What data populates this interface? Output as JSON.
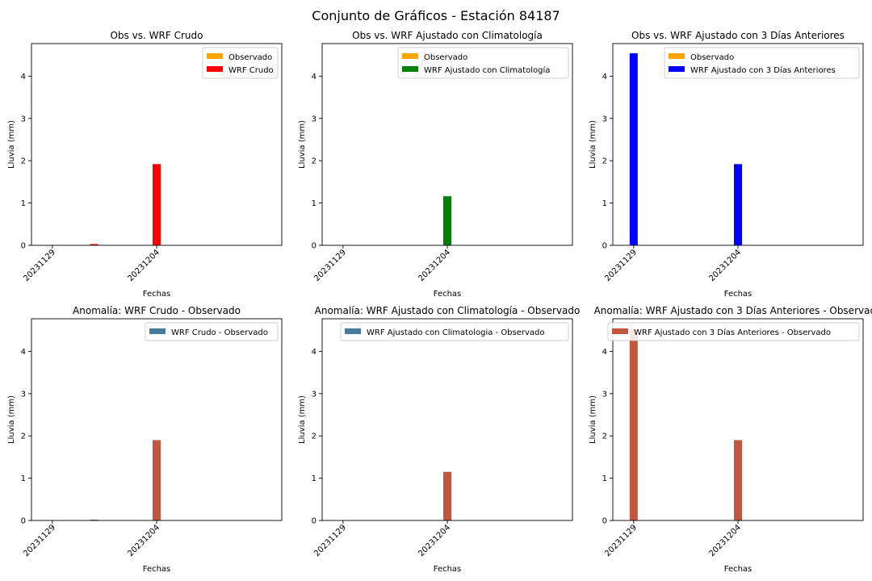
{
  "figure": {
    "title": "Conjunto de Gráficos - Estación 84187"
  },
  "chart_data": [
    {
      "type": "bar",
      "title": "Obs vs. WRF Crudo",
      "xlabel": "Fechas",
      "ylabel": "Lluvia (mm)",
      "ylim": [
        0,
        4.77
      ],
      "yticks": [
        0,
        1,
        2,
        3,
        4
      ],
      "x_ticks": [
        "20231129",
        "20231204"
      ],
      "xlim": [
        "20231128",
        "20231210"
      ],
      "legend": "top-right",
      "series": [
        {
          "name": "Observado",
          "color": "#ffa500",
          "points": []
        },
        {
          "name": "WRF Crudo",
          "color": "#ff0000",
          "points": [
            {
              "x": "20231201",
              "y": 0.03
            },
            {
              "x": "20231204",
              "y": 1.92
            }
          ]
        }
      ]
    },
    {
      "type": "bar",
      "title": "Obs vs. WRF Ajustado con Climatología",
      "xlabel": "Fechas",
      "ylabel": "Lluvia (mm)",
      "ylim": [
        0,
        4.77
      ],
      "yticks": [
        0,
        1,
        2,
        3,
        4
      ],
      "x_ticks": [
        "20231129",
        "20231204"
      ],
      "xlim": [
        "20231128",
        "20231210"
      ],
      "legend": "top-right",
      "series": [
        {
          "name": "Observado",
          "color": "#ffa500",
          "points": []
        },
        {
          "name": "WRF Ajustado con Climatología",
          "color": "#008000",
          "points": [
            {
              "x": "20231204",
              "y": 1.16
            }
          ]
        }
      ]
    },
    {
      "type": "bar",
      "title": "Obs vs. WRF Ajustado con 3 Días Anteriores",
      "xlabel": "Fechas",
      "ylabel": "Lluvia (mm)",
      "ylim": [
        0,
        4.77
      ],
      "yticks": [
        0,
        1,
        2,
        3,
        4
      ],
      "x_ticks": [
        "20231129",
        "20231204"
      ],
      "xlim": [
        "20231128",
        "20231210"
      ],
      "legend": "top-right",
      "series": [
        {
          "name": "Observado",
          "color": "#ffa500",
          "points": []
        },
        {
          "name": "WRF Ajustado con 3 Días Anteriores",
          "color": "#0000ff",
          "points": [
            {
              "x": "20231129",
              "y": 4.54
            },
            {
              "x": "20231204",
              "y": 1.92
            }
          ]
        }
      ]
    },
    {
      "type": "bar",
      "title": "Anomalía: WRF Crudo - Observado",
      "xlabel": "Fechas",
      "ylabel": "Lluvia (mm)",
      "ylim": [
        0,
        4.77
      ],
      "yticks": [
        0,
        1,
        2,
        3,
        4
      ],
      "x_ticks": [
        "20231129",
        "20231204"
      ],
      "xlim": [
        "20231128",
        "20231210"
      ],
      "legend": "top-right",
      "legend_color": "#457b9d",
      "series": [
        {
          "name": "WRF Crudo - Observado",
          "color": "#c1583d",
          "points": [
            {
              "x": "20231201",
              "y": 0.02
            },
            {
              "x": "20231204",
              "y": 1.9
            }
          ]
        }
      ]
    },
    {
      "type": "bar",
      "title": "Anomalía: WRF Ajustado con Climatología - Observado",
      "xlabel": "Fechas",
      "ylabel": "Lluvia (mm)",
      "ylim": [
        0,
        4.77
      ],
      "yticks": [
        0,
        1,
        2,
        3,
        4
      ],
      "x_ticks": [
        "20231129",
        "20231204"
      ],
      "xlim": [
        "20231128",
        "20231210"
      ],
      "legend": "top-right",
      "legend_color": "#457b9d",
      "series": [
        {
          "name": "WRF Ajustado con Climatologia - Observado",
          "color": "#c1583d",
          "points": [
            {
              "x": "20231204",
              "y": 1.15
            }
          ]
        }
      ]
    },
    {
      "type": "bar",
      "title": "Anomalía: WRF Ajustado con 3 Días Anteriores - Observado",
      "xlabel": "Fechas",
      "ylabel": "Lluvia (mm)",
      "ylim": [
        0,
        4.77
      ],
      "yticks": [
        0,
        1,
        2,
        3,
        4
      ],
      "x_ticks": [
        "20231129",
        "20231204"
      ],
      "xlim": [
        "20231128",
        "20231210"
      ],
      "legend": "top-right",
      "legend_color": "#c1583d",
      "series": [
        {
          "name": "WRF Ajustado con 3 Días Anteriores - Observado",
          "color": "#c1583d",
          "points": [
            {
              "x": "20231129",
              "y": 4.52
            },
            {
              "x": "20231204",
              "y": 1.9
            }
          ]
        }
      ]
    }
  ]
}
